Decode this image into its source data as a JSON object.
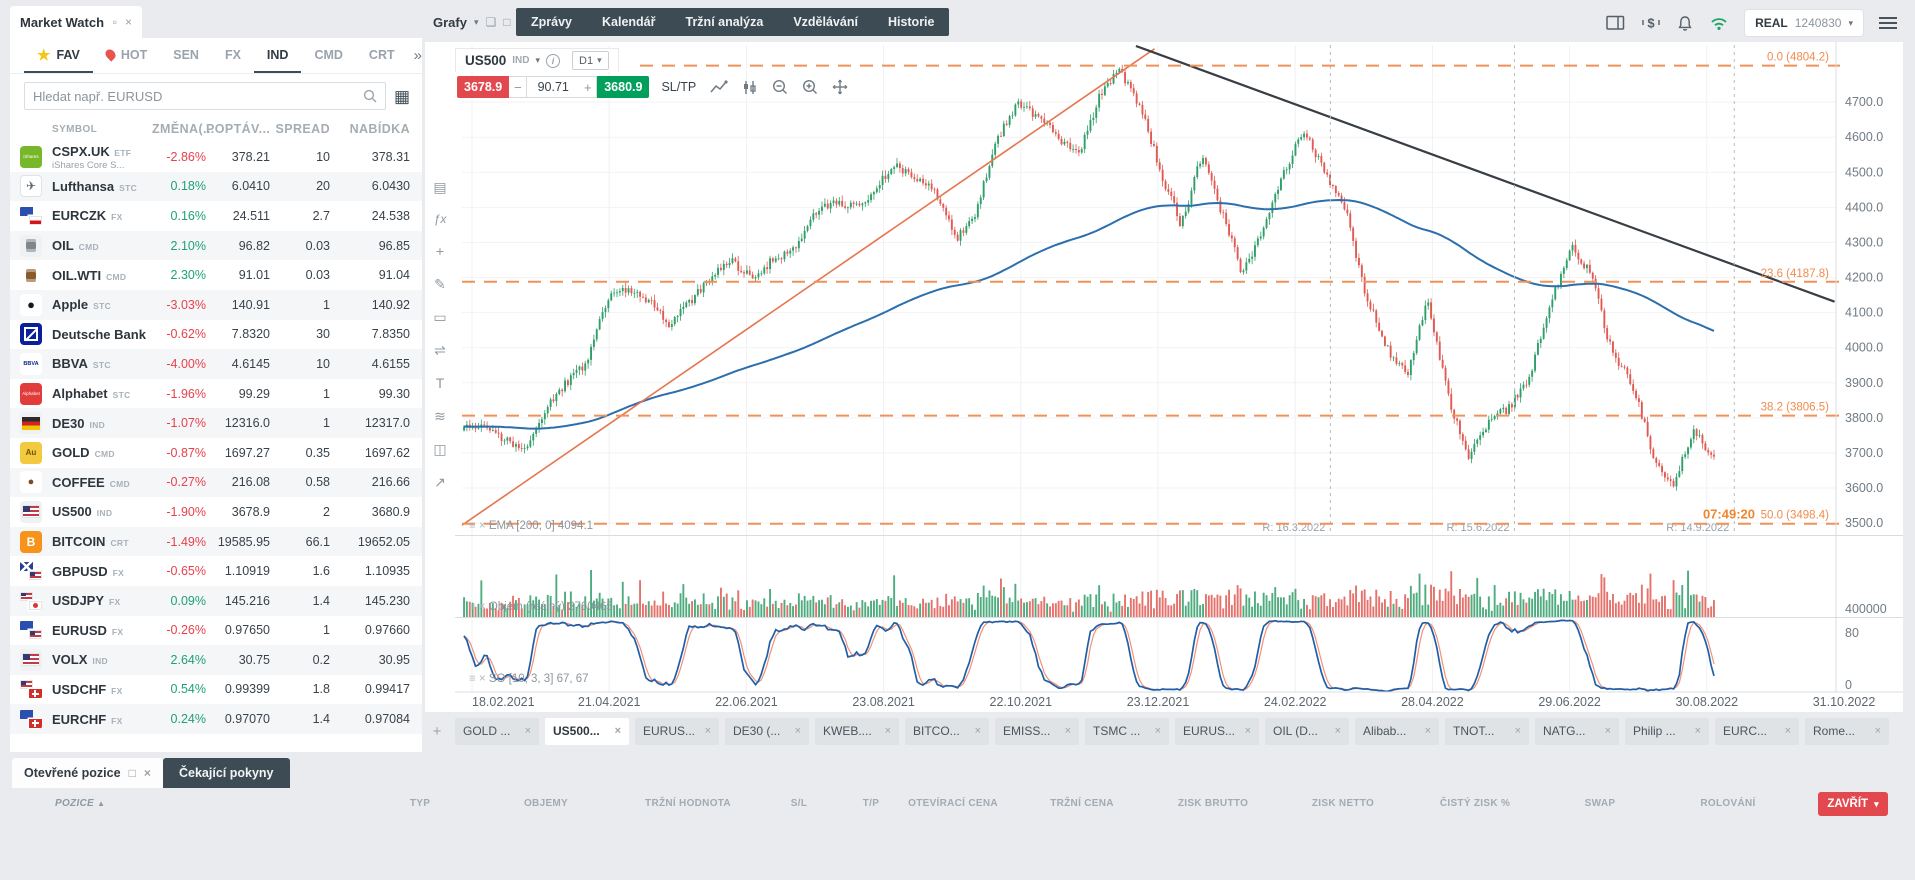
{
  "account": {
    "mode": "REAL",
    "number": "1240830"
  },
  "top_nav": {
    "items": [
      "Zprávy",
      "Kalendář",
      "Tržní analýza",
      "Vzdělávání",
      "Historie"
    ]
  },
  "market_watch": {
    "title": "Market Watch",
    "tabs": [
      {
        "label": "FAV",
        "icon": "star",
        "active": true
      },
      {
        "label": "HOT",
        "icon": "flame",
        "active": false
      },
      {
        "label": "SEN",
        "active": false
      },
      {
        "label": "FX",
        "active": false
      },
      {
        "label": "IND",
        "active": true
      },
      {
        "label": "CMD",
        "active": false
      },
      {
        "label": "CRT",
        "active": false
      }
    ],
    "overflow_icon": "»",
    "search_placeholder": "Hledat např. EURUSD",
    "columns": [
      "SYMBOL",
      "ZMĚNA(...",
      "POPTÁV...",
      "SPREAD",
      "NABÍDKA"
    ],
    "rows": [
      {
        "symbol": "CSPX.UK",
        "tag": "ETF",
        "sub": "iShares Core S...",
        "change": "-2.86%",
        "bid": "378.21",
        "spread": "10",
        "ask": "378.31",
        "dir": "down",
        "icon": {
          "kind": "solid",
          "bg": "#76b82a",
          "fg": "#fff",
          "text": "iShares",
          "fs": 4.5
        }
      },
      {
        "symbol": "Lufthansa",
        "tag": "STC",
        "change": "0.18%",
        "bid": "6.0410",
        "spread": "20",
        "ask": "6.0430",
        "dir": "up",
        "icon": {
          "kind": "solid",
          "bg": "#fff",
          "fg": "#5a646c",
          "text": "✈",
          "fs": 12,
          "border": true
        }
      },
      {
        "symbol": "EURCZK",
        "tag": "FX",
        "change": "0.16%",
        "bid": "24.511",
        "spread": "2.7",
        "ask": "24.538",
        "dir": "up",
        "icon": {
          "kind": "pair",
          "a": "eu",
          "b": "cz"
        }
      },
      {
        "symbol": "OIL",
        "tag": "CMD",
        "change": "2.10%",
        "bid": "96.82",
        "spread": "0.03",
        "ask": "96.85",
        "dir": "up",
        "icon": {
          "kind": "barrel",
          "bg": "#f0f1f2",
          "fg": "#7d868d"
        }
      },
      {
        "symbol": "OIL.WTI",
        "tag": "CMD",
        "change": "2.30%",
        "bid": "91.01",
        "spread": "0.03",
        "ask": "91.04",
        "dir": "up",
        "icon": {
          "kind": "barrel",
          "bg": "#fff",
          "fg": "#8a5a2a"
        }
      },
      {
        "symbol": "Apple",
        "tag": "STC",
        "change": "-3.03%",
        "bid": "140.91",
        "spread": "1",
        "ask": "140.92",
        "dir": "down",
        "icon": {
          "kind": "solid",
          "bg": "#fff",
          "fg": "#16191c",
          "text": "●",
          "fs": 13
        }
      },
      {
        "symbol": "Deutsche Bank",
        "tag": "",
        "change": "-0.62%",
        "bid": "7.8320",
        "spread": "30",
        "ask": "7.8350",
        "dir": "down",
        "icon": {
          "kind": "db"
        }
      },
      {
        "symbol": "BBVA",
        "tag": "STC",
        "change": "-4.00%",
        "bid": "4.6145",
        "spread": "10",
        "ask": "4.6155",
        "dir": "down",
        "icon": {
          "kind": "solid",
          "bg": "#fff",
          "fg": "#07288a",
          "text": "BBVA",
          "fs": 5.5,
          "bold": true
        }
      },
      {
        "symbol": "Alphabet",
        "tag": "STC",
        "change": "-1.96%",
        "bid": "99.29",
        "spread": "1",
        "ask": "99.30",
        "dir": "down",
        "icon": {
          "kind": "solid",
          "bg": "#e23b3b",
          "fg": "#fff",
          "text": "Alphabet",
          "fs": 4.5
        }
      },
      {
        "symbol": "DE30",
        "tag": "IND",
        "change": "-1.07%",
        "bid": "12316.0",
        "spread": "1",
        "ask": "12317.0",
        "dir": "down",
        "icon": {
          "kind": "flag",
          "f": "de"
        }
      },
      {
        "symbol": "GOLD",
        "tag": "CMD",
        "change": "-0.87%",
        "bid": "1697.27",
        "spread": "0.35",
        "ask": "1697.62",
        "dir": "down",
        "icon": {
          "kind": "solid",
          "bg": "#f3c93f",
          "fg": "#6b5200",
          "text": "Au",
          "fs": 8,
          "bold": true
        }
      },
      {
        "symbol": "COFFEE",
        "tag": "CMD",
        "change": "-0.27%",
        "bid": "216.08",
        "spread": "0.58",
        "ask": "216.66",
        "dir": "down",
        "icon": {
          "kind": "solid",
          "bg": "#fff",
          "fg": "#7a4a2b",
          "text": "●",
          "fs": 11
        }
      },
      {
        "symbol": "US500",
        "tag": "IND",
        "change": "-1.90%",
        "bid": "3678.9",
        "spread": "2",
        "ask": "3680.9",
        "dir": "down",
        "icon": {
          "kind": "flag",
          "f": "us"
        }
      },
      {
        "symbol": "BITCOIN",
        "tag": "CRT",
        "change": "-1.49%",
        "bid": "19585.95",
        "spread": "66.1",
        "ask": "19652.05",
        "dir": "down",
        "icon": {
          "kind": "solid",
          "bg": "#f7931a",
          "fg": "#fff",
          "text": "B",
          "fs": 12,
          "bold": true
        }
      },
      {
        "symbol": "GBPUSD",
        "tag": "FX",
        "change": "-0.65%",
        "bid": "1.10919",
        "spread": "1.6",
        "ask": "1.10935",
        "dir": "down",
        "icon": {
          "kind": "pair",
          "a": "gb",
          "b": "us"
        }
      },
      {
        "symbol": "USDJPY",
        "tag": "FX",
        "change": "0.09%",
        "bid": "145.216",
        "spread": "1.4",
        "ask": "145.230",
        "dir": "up",
        "icon": {
          "kind": "pair",
          "a": "us",
          "b": "jp"
        }
      },
      {
        "symbol": "EURUSD",
        "tag": "FX",
        "change": "-0.26%",
        "bid": "0.97650",
        "spread": "1",
        "ask": "0.97660",
        "dir": "down",
        "icon": {
          "kind": "pair",
          "a": "eu",
          "b": "us"
        }
      },
      {
        "symbol": "VOLX",
        "tag": "IND",
        "change": "2.64%",
        "bid": "30.75",
        "spread": "0.2",
        "ask": "30.95",
        "dir": "up",
        "icon": {
          "kind": "flag",
          "f": "us"
        }
      },
      {
        "symbol": "USDCHF",
        "tag": "FX",
        "change": "0.54%",
        "bid": "0.99399",
        "spread": "1.8",
        "ask": "0.99417",
        "dir": "up",
        "icon": {
          "kind": "pair",
          "a": "us",
          "b": "ch"
        }
      },
      {
        "symbol": "EURCHF",
        "tag": "FX",
        "change": "0.24%",
        "bid": "0.97070",
        "spread": "1.4",
        "ask": "0.97084",
        "dir": "up",
        "icon": {
          "kind": "pair",
          "a": "eu",
          "b": "ch"
        }
      }
    ]
  },
  "chart": {
    "window_title": "Grafy",
    "header": {
      "symbol": "US500",
      "tag": "IND",
      "timeframe": "D1",
      "sell": "3678.9",
      "qty": "90.71",
      "buy": "3680.9",
      "sltp": "SL/TP"
    },
    "toolbar": [
      {
        "name": "panels-icon",
        "glyph": "▤"
      },
      {
        "name": "function-icon",
        "glyph": "ƒx"
      },
      {
        "name": "add-icon",
        "glyph": "+"
      },
      {
        "name": "draw-icon",
        "glyph": "✎"
      },
      {
        "name": "shapes-icon",
        "glyph": "▭"
      },
      {
        "name": "compare-icon",
        "glyph": "⇌"
      },
      {
        "name": "text-tool-icon",
        "glyph": "T"
      },
      {
        "name": "fibonacci-icon",
        "glyph": "≋"
      },
      {
        "name": "windows-icon",
        "glyph": "◫"
      },
      {
        "name": "share-icon",
        "glyph": "↗"
      }
    ]
  },
  "chart_data": {
    "type": "candlestick",
    "symbol": "US500",
    "timeframe": "D1",
    "candle_count": 434,
    "anchors": [
      3770,
      3780,
      3740,
      3710,
      3830,
      3900,
      3960,
      4140,
      4170,
      4135,
      4065,
      4125,
      4200,
      4250,
      4200,
      4245,
      4270,
      4370,
      4420,
      4400,
      4445,
      4525,
      4480,
      4450,
      4310,
      4390,
      4590,
      4700,
      4660,
      4600,
      4550,
      4715,
      4790,
      4690,
      4500,
      4350,
      4550,
      4380,
      4210,
      4330,
      4500,
      4620,
      4500,
      4400,
      4150,
      4000,
      3920,
      4140,
      3870,
      3680,
      3790,
      3830,
      3920,
      4120,
      4290,
      4210,
      3990,
      3900,
      3700,
      3600,
      3770,
      3680
    ],
    "price_ticks": [
      4700,
      4600,
      4500,
      4400,
      4300,
      4200,
      4100,
      4000,
      3900,
      3800,
      3700,
      3600,
      3500
    ],
    "date_ticks": [
      "18.02.2021",
      "21.04.2021",
      "22.06.2021",
      "23.08.2021",
      "22.10.2021",
      "23.12.2021",
      "24.02.2022",
      "28.04.2022",
      "29.06.2022",
      "30.08.2022",
      "31.10.2022"
    ],
    "volume_tick": "400000",
    "so_ticks": [
      "80",
      "0"
    ],
    "fib_levels": [
      {
        "label": "0.0 (4804.2)",
        "price": 4804.2
      },
      {
        "label": "23.6 (4187.8)",
        "price": 4187.8
      },
      {
        "label": "38.2 (3806.5)",
        "price": 3806.5
      },
      {
        "label": "50.0 (3498.4)",
        "price": 3498.4
      }
    ],
    "countdown": "07:49:20",
    "rollover_markers": [
      {
        "label": "R: 16.3.2022",
        "xf": 0.632
      },
      {
        "label": "R: 15.6.2022",
        "xf": 0.766
      },
      {
        "label": "R: 14.9.2022",
        "xf": 0.926
      }
    ],
    "trendlines": [
      {
        "x1f": 0.0,
        "p1": 3494,
        "x2f": 0.504,
        "p2": 4852,
        "color": "#e8744d",
        "w": 1.6
      },
      {
        "x1f": 0.4905,
        "p1": 4860,
        "x2f": 0.999,
        "p2": 4131,
        "color": "#383e44",
        "w": 2.2
      }
    ],
    "indicator_labels": {
      "ema": "EMA [200, 0] 4094.1",
      "volume": "Objem (reálný) 2760465",
      "so": "SO [10, 3, 3] 67, 67"
    },
    "colors": {
      "up": "#2f9e68",
      "down": "#e15a52",
      "ema": "#2c6fad",
      "fib": "#ef8c4e",
      "so_k": "#1f5fa8",
      "so_d": "#f2917a"
    }
  },
  "chart_tabs": {
    "add_label": "+",
    "tabs": [
      {
        "label": "GOLD ...",
        "active": false
      },
      {
        "label": "US500...",
        "active": true
      },
      {
        "label": "EURUS...",
        "active": false
      },
      {
        "label": "DE30 (...",
        "active": false
      },
      {
        "label": "KWEB....",
        "active": false
      },
      {
        "label": "BITCO...",
        "active": false
      },
      {
        "label": "EMISS...",
        "active": false
      },
      {
        "label": "TSMC ...",
        "active": false
      },
      {
        "label": "EURUS...",
        "active": false
      },
      {
        "label": "OIL (D...",
        "active": false
      },
      {
        "label": "Alibab...",
        "active": false
      },
      {
        "label": "TNOT...",
        "active": false
      },
      {
        "label": "NATG...",
        "active": false
      },
      {
        "label": "Philip ...",
        "active": false
      },
      {
        "label": "EURC...",
        "active": false
      },
      {
        "label": "Rome...",
        "active": false
      }
    ]
  },
  "positions": {
    "open_tab": "Otevřené pozice",
    "pending_tab": "Čekající pokyny",
    "sort_icon": "▲",
    "columns": [
      "POZICE",
      "TYP",
      "OBJEMY",
      "TRŽNÍ HODNOTA",
      "S/L",
      "T/P",
      "OTEVÍRACÍ CENA",
      "TRŽNÍ CENA",
      "ZISK BRUTTO",
      "ZISK NETTO",
      "ČISTÝ ZISK %",
      "SWAP",
      "ROLOVÁNÍ"
    ],
    "close_button": "ZAVŘÍT"
  }
}
